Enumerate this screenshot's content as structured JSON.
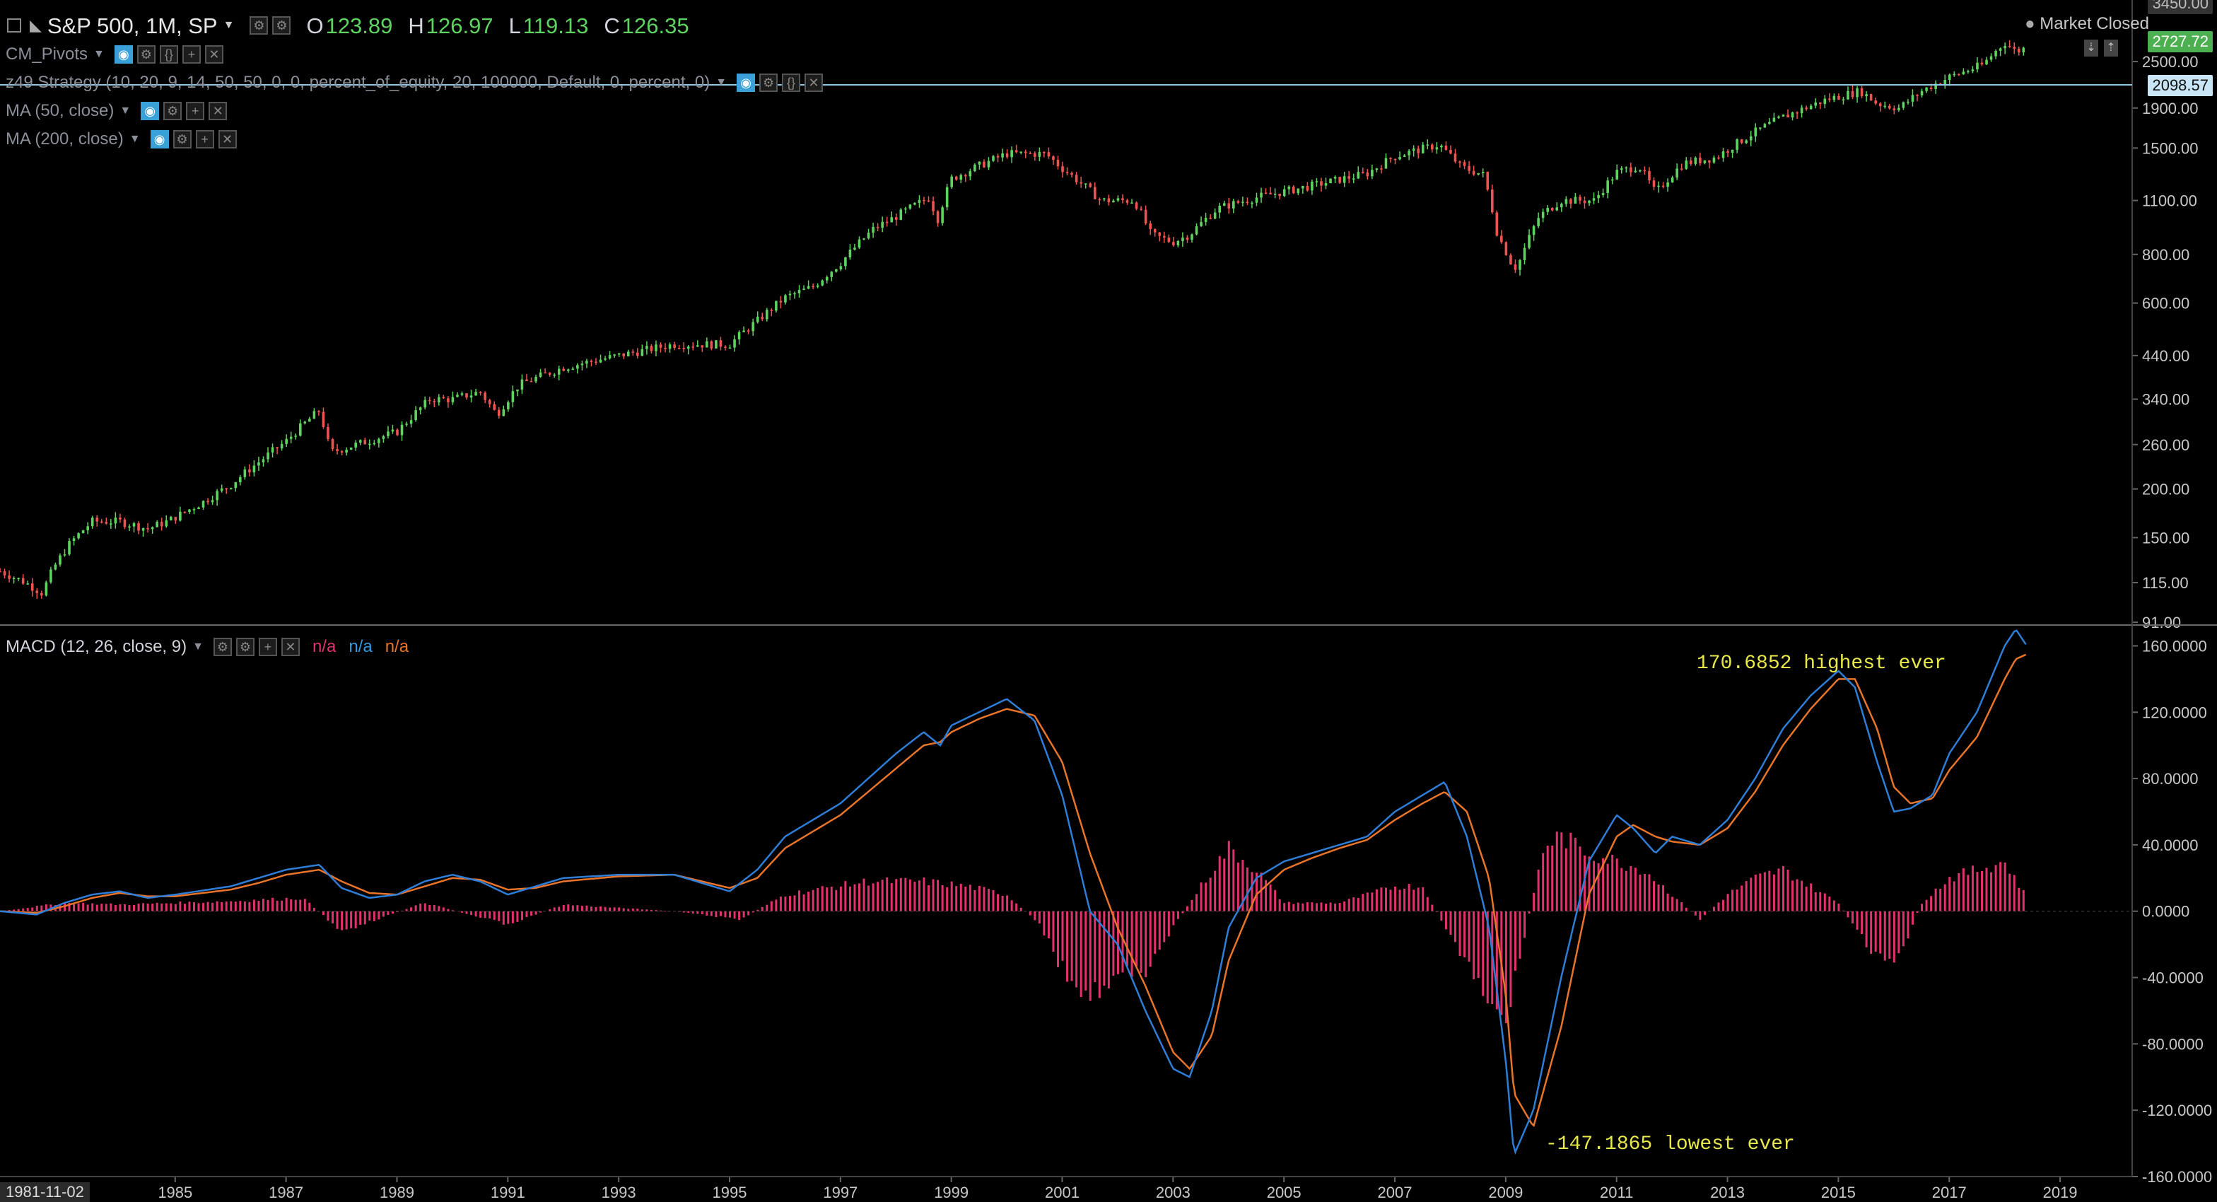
{
  "header": {
    "symbol_label": "S&P 500, 1M, SP",
    "open_label": "O",
    "open_value": "123.89",
    "high_label": "H",
    "high_value": "126.97",
    "low_label": "L",
    "low_value": "119.13",
    "close_label": "C",
    "close_value": "126.35",
    "market_status": "Market Closed"
  },
  "indicators": [
    {
      "name": "CM_Pivots"
    },
    {
      "name": "z49 Strategy (10, 20, 9, 14, 50, 50, 0, 0, percent_of_equity, 20, 100000, Default, 0, percent, 0)"
    },
    {
      "name": "MA (50, close)"
    },
    {
      "name": "MA (200, close)"
    }
  ],
  "macd_legend": {
    "name": "MACD (12, 26, close, 9)",
    "values": [
      "n/a",
      "n/a",
      "n/a"
    ]
  },
  "price_tags": {
    "last": "2727.72",
    "crosshair": "2098.57",
    "top_partial": "3450.00"
  },
  "annotations": {
    "high": "170.6852 highest ever",
    "low": "-147.1865 lowest ever"
  },
  "colors": {
    "background": "#000000",
    "candle_up": "#5fd35f",
    "candle_down": "#ef5350",
    "macd_line": "#2e7dd7",
    "signal_line": "#e8742a",
    "histogram": "#e0336b",
    "annotation": "#e8e84a",
    "last_tag": "#4caf50",
    "crosshair_tag": "#c8e6f5"
  },
  "chart_data": [
    {
      "type": "candlestick",
      "title": "S&P 500, 1M, SP",
      "scale": "log",
      "ylim": [
        91,
        3450
      ],
      "y_ticks": [
        "2500.00",
        "1900.00",
        "1500.00",
        "1100.00",
        "800.00",
        "600.00",
        "440.00",
        "340.00",
        "260.00",
        "200.00",
        "150.00",
        "115.00",
        "91.00"
      ],
      "x_ticks": [
        "1985",
        "1987",
        "1989",
        "1991",
        "1993",
        "1995",
        "1997",
        "1999",
        "2001",
        "2003",
        "2005",
        "2007",
        "2009",
        "2011",
        "2013",
        "2015",
        "2017",
        "2019"
      ],
      "x_start_label": "1981-11-02",
      "path_points": [
        [
          1981.84,
          123
        ],
        [
          1982.3,
          115
        ],
        [
          1982.6,
          108
        ],
        [
          1982.8,
          125
        ],
        [
          1983.1,
          145
        ],
        [
          1983.5,
          165
        ],
        [
          1984.0,
          165
        ],
        [
          1984.5,
          158
        ],
        [
          1984.9,
          166
        ],
        [
          1985.5,
          185
        ],
        [
          1986.0,
          205
        ],
        [
          1986.6,
          240
        ],
        [
          1987.0,
          265
        ],
        [
          1987.6,
          318
        ],
        [
          1987.8,
          248
        ],
        [
          1988.5,
          266
        ],
        [
          1989.0,
          280
        ],
        [
          1989.6,
          340
        ],
        [
          1990.0,
          340
        ],
        [
          1990.5,
          355
        ],
        [
          1990.8,
          310
        ],
        [
          1991.2,
          370
        ],
        [
          1992.0,
          410
        ],
        [
          1993.0,
          440
        ],
        [
          1994.0,
          470
        ],
        [
          1995.0,
          470
        ],
        [
          1995.5,
          540
        ],
        [
          1996.0,
          620
        ],
        [
          1996.5,
          660
        ],
        [
          1997.0,
          760
        ],
        [
          1997.6,
          930
        ],
        [
          1998.0,
          1000
        ],
        [
          1998.6,
          1120
        ],
        [
          1998.75,
          980
        ],
        [
          1999.0,
          1250
        ],
        [
          1999.5,
          1350
        ],
        [
          2000.0,
          1450
        ],
        [
          2000.7,
          1450
        ],
        [
          2001.0,
          1330
        ],
        [
          2001.7,
          1100
        ],
        [
          2002.3,
          1100
        ],
        [
          2002.6,
          900
        ],
        [
          2003.0,
          860
        ],
        [
          2003.3,
          900
        ],
        [
          2003.8,
          1050
        ],
        [
          2004.5,
          1120
        ],
        [
          2005.5,
          1200
        ],
        [
          2006.5,
          1290
        ],
        [
          2007.0,
          1430
        ],
        [
          2007.8,
          1530
        ],
        [
          2008.2,
          1340
        ],
        [
          2008.6,
          1280
        ],
        [
          2008.85,
          900
        ],
        [
          2009.1,
          760
        ],
        [
          2009.2,
          735
        ],
        [
          2009.6,
          1000
        ],
        [
          2010.0,
          1100
        ],
        [
          2010.6,
          1100
        ],
        [
          2011.0,
          1300
        ],
        [
          2011.4,
          1350
        ],
        [
          2011.7,
          1150
        ],
        [
          2012.2,
          1370
        ],
        [
          2012.8,
          1420
        ],
        [
          2013.5,
          1650
        ],
        [
          2014.0,
          1800
        ],
        [
          2014.8,
          2000
        ],
        [
          2015.4,
          2100
        ],
        [
          2015.7,
          1950
        ],
        [
          2016.1,
          1900
        ],
        [
          2016.5,
          2100
        ],
        [
          2017.0,
          2280
        ],
        [
          2017.6,
          2450
        ],
        [
          2018.0,
          2800
        ],
        [
          2018.2,
          2650
        ],
        [
          2018.4,
          2720
        ]
      ]
    },
    {
      "type": "line",
      "title": "MACD (12, 26, close, 9)",
      "ylim": [
        -160,
        170
      ],
      "y_ticks": [
        "160.0000",
        "120.0000",
        "80.0000",
        "40.0000",
        "0.0000",
        "-40.0000",
        "-80.0000",
        "-120.0000",
        "-160.0000"
      ],
      "series": [
        {
          "name": "MACD",
          "x": [
            1981.84,
            1982.5,
            1983.0,
            1983.5,
            1984.0,
            1984.5,
            1985.0,
            1986.0,
            1986.5,
            1987.0,
            1987.6,
            1988.0,
            1988.5,
            1989.0,
            1989.5,
            1990.0,
            1990.5,
            1991.0,
            1991.5,
            1992.0,
            1993.0,
            1994.0,
            1995.0,
            1995.5,
            1996.0,
            1996.5,
            1997.0,
            1997.5,
            1998.0,
            1998.5,
            1998.8,
            1999.0,
            1999.5,
            2000.0,
            2000.5,
            2001.0,
            2001.5,
            2002.0,
            2002.5,
            2003.0,
            2003.3,
            2003.7,
            2004.0,
            2004.5,
            2005.0,
            2005.5,
            2006.0,
            2006.5,
            2007.0,
            2007.5,
            2007.9,
            2008.3,
            2008.7,
            2009.0,
            2009.15,
            2009.5,
            2010.0,
            2010.5,
            2011.0,
            2011.3,
            2011.7,
            2012.0,
            2012.5,
            2013.0,
            2013.5,
            2014.0,
            2014.5,
            2015.0,
            2015.3,
            2015.7,
            2016.0,
            2016.3,
            2016.7,
            2017.0,
            2017.5,
            2018.0,
            2018.2,
            2018.4
          ],
          "values": [
            0,
            -2,
            5,
            10,
            12,
            8,
            10,
            15,
            20,
            25,
            28,
            14,
            8,
            10,
            18,
            22,
            18,
            10,
            15,
            20,
            22,
            22,
            12,
            25,
            45,
            55,
            65,
            80,
            95,
            108,
            100,
            112,
            120,
            128,
            115,
            70,
            0,
            -20,
            -60,
            -95,
            -100,
            -60,
            -10,
            20,
            30,
            35,
            40,
            45,
            60,
            70,
            78,
            45,
            -10,
            -90,
            -147,
            -120,
            -40,
            30,
            58,
            50,
            35,
            45,
            40,
            55,
            80,
            110,
            130,
            145,
            135,
            90,
            60,
            62,
            70,
            95,
            120,
            160,
            170,
            160
          ]
        },
        {
          "name": "Signal",
          "x": [
            1981.84,
            1982.5,
            1983.0,
            1983.5,
            1984.0,
            1984.5,
            1985.0,
            1986.0,
            1986.5,
            1987.0,
            1987.6,
            1988.0,
            1988.5,
            1989.0,
            1989.5,
            1990.0,
            1990.5,
            1991.0,
            1991.5,
            1992.0,
            1993.0,
            1994.0,
            1995.0,
            1995.5,
            1996.0,
            1996.5,
            1997.0,
            1997.5,
            1998.0,
            1998.5,
            1998.8,
            1999.0,
            1999.5,
            2000.0,
            2000.5,
            2001.0,
            2001.5,
            2002.0,
            2002.5,
            2003.0,
            2003.3,
            2003.7,
            2004.0,
            2004.5,
            2005.0,
            2005.5,
            2006.0,
            2006.5,
            2007.0,
            2007.5,
            2007.9,
            2008.3,
            2008.7,
            2009.0,
            2009.15,
            2009.5,
            2010.0,
            2010.5,
            2011.0,
            2011.3,
            2011.7,
            2012.0,
            2012.5,
            2013.0,
            2013.5,
            2014.0,
            2014.5,
            2015.0,
            2015.3,
            2015.7,
            2016.0,
            2016.3,
            2016.7,
            2017.0,
            2017.5,
            2018.0,
            2018.2,
            2018.4
          ],
          "values": [
            0,
            -1,
            3,
            8,
            11,
            9,
            9,
            13,
            17,
            22,
            25,
            18,
            11,
            10,
            15,
            20,
            19,
            13,
            14,
            18,
            21,
            22,
            14,
            20,
            38,
            48,
            58,
            72,
            86,
            100,
            102,
            108,
            116,
            122,
            118,
            90,
            35,
            -10,
            -45,
            -85,
            -95,
            -75,
            -30,
            10,
            25,
            32,
            38,
            43,
            55,
            65,
            72,
            60,
            20,
            -50,
            -110,
            -130,
            -70,
            10,
            45,
            52,
            45,
            42,
            40,
            50,
            72,
            100,
            122,
            140,
            140,
            110,
            75,
            65,
            68,
            85,
            105,
            140,
            152,
            155
          ]
        },
        {
          "name": "Histogram",
          "x": [
            1981.84,
            1983.0,
            1984.0,
            1986.0,
            1987.3,
            1988.0,
            1989.5,
            1991.0,
            1992.0,
            1994.0,
            1995.2,
            1996.0,
            1997.5,
            1998.5,
            1999.3,
            2000.0,
            2000.6,
            2001.0,
            2001.5,
            2002.0,
            2002.5,
            2003.0,
            2003.5,
            2004.0,
            2004.5,
            2005.0,
            2006.0,
            2007.0,
            2007.5,
            2008.0,
            2008.5,
            2009.0,
            2009.3,
            2009.7,
            2010.0,
            2010.5,
            2011.0,
            2011.5,
            2012.0,
            2012.5,
            2013.0,
            2013.5,
            2014.0,
            2014.5,
            2015.0,
            2015.5,
            2016.0,
            2016.5,
            2017.0,
            2017.5,
            2018.0,
            2018.4
          ],
          "values": [
            0,
            5,
            4,
            6,
            8,
            -12,
            5,
            -8,
            4,
            0,
            -5,
            10,
            18,
            18,
            15,
            10,
            -8,
            -35,
            -50,
            -40,
            -35,
            -10,
            15,
            38,
            25,
            5,
            5,
            15,
            15,
            -15,
            -45,
            -70,
            -20,
            40,
            45,
            35,
            30,
            25,
            10,
            -5,
            10,
            20,
            25,
            15,
            5,
            -20,
            -35,
            5,
            20,
            25,
            30,
            8
          ]
        }
      ]
    }
  ]
}
